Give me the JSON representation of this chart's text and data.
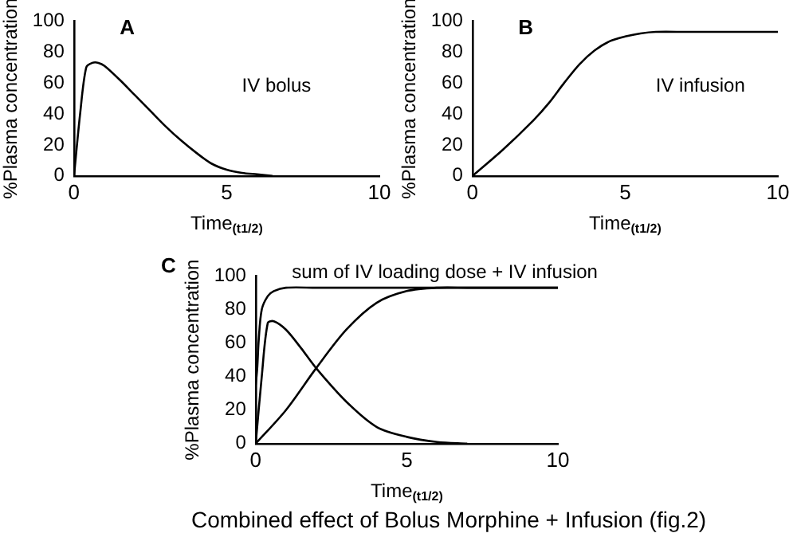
{
  "chart_data": [
    {
      "type": "line",
      "title": "A",
      "xlabel": "Time$_{(t1/2)}$",
      "ylabel": "%Plasma concentration",
      "xlim": [
        0,
        10
      ],
      "ylim": [
        0,
        100
      ],
      "xticks": [
        0,
        5,
        10
      ],
      "yticks": [
        0,
        20,
        40,
        60,
        80,
        100
      ],
      "grid": false,
      "legend": false,
      "marker": "none",
      "annotations": [
        "IV bolus"
      ],
      "series": [
        {
          "color": "#000000",
          "x": [
            0,
            0.2,
            0.4,
            0.6,
            0.8,
            1,
            1.5,
            2,
            2.5,
            3,
            3.5,
            4,
            4.5,
            5,
            5.5,
            6,
            6.5
          ],
          "values": [
            0,
            40,
            70,
            73,
            73,
            71,
            62,
            52,
            42,
            32,
            23,
            15,
            8,
            4,
            2,
            1,
            0
          ]
        }
      ]
    },
    {
      "type": "line",
      "title": "B",
      "xlabel": "Time$_{(t1/2)}$",
      "ylabel": "%Plasma concentration",
      "xlim": [
        0,
        10
      ],
      "ylim": [
        0,
        100
      ],
      "xticks": [
        0,
        5,
        10
      ],
      "yticks": [
        0,
        20,
        40,
        60,
        80,
        100
      ],
      "grid": false,
      "legend": false,
      "marker": "none",
      "annotations": [
        "IV infusion"
      ],
      "series": [
        {
          "color": "#000000",
          "x": [
            0,
            1,
            2,
            2.5,
            3,
            3.5,
            4,
            4.5,
            5,
            5.5,
            6,
            7,
            8,
            9,
            10
          ],
          "values": [
            0,
            17,
            36,
            47,
            60,
            72,
            81,
            87,
            90,
            92,
            93,
            93,
            93,
            93,
            93
          ]
        }
      ]
    },
    {
      "type": "line",
      "title": "C",
      "xlabel": "Time$_{(t1/2)}$",
      "ylabel": "%Plasma concentration",
      "xlim": [
        0,
        10
      ],
      "ylim": [
        0,
        100
      ],
      "xticks": [
        0,
        5,
        10
      ],
      "yticks": [
        0,
        20,
        40,
        60,
        80,
        100
      ],
      "grid": false,
      "legend": false,
      "marker": "none",
      "annotations": [
        "sum of IV loading dose + IV infusion",
        "Combined effect of Bolus Morphine + Infusion (fig.2)"
      ],
      "series": [
        {
          "color": "#000000",
          "x": [
            0,
            0.05,
            0.1,
            0.2,
            0.4,
            0.6,
            1,
            2,
            4,
            6,
            8,
            10
          ],
          "values": [
            35,
            45,
            62,
            80,
            88,
            91,
            93,
            93,
            93,
            93,
            93,
            93
          ]
        },
        {
          "color": "#000000",
          "x": [
            0,
            0.2,
            0.4,
            0.6,
            1,
            1.5,
            2,
            3,
            4,
            5,
            6,
            7
          ],
          "values": [
            0,
            40,
            72,
            73,
            68,
            57,
            45,
            25,
            10,
            4,
            1,
            0
          ]
        },
        {
          "color": "#000000",
          "x": [
            0,
            1,
            2,
            3,
            4,
            5,
            6,
            7,
            8,
            10
          ],
          "values": [
            0,
            20,
            45,
            68,
            84,
            91,
            93,
            93,
            93,
            93
          ]
        }
      ]
    }
  ]
}
